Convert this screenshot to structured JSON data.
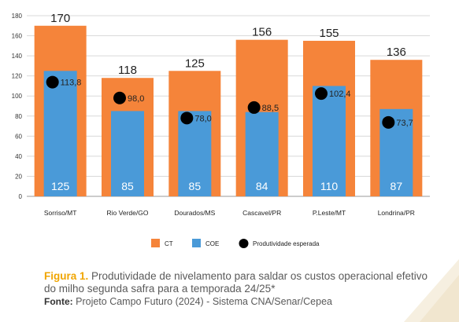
{
  "chart_data": {
    "type": "bar",
    "categories": [
      "Sorriso/MT",
      "Rio Verde/GO",
      "Dourados/MS",
      "Cascavel/PR",
      "P.Leste/MT",
      "Londrina/PR"
    ],
    "series": [
      {
        "name": "CT",
        "values": [
          170,
          118,
          125,
          156,
          155,
          136
        ],
        "color": "#f5843a",
        "labels": [
          "170",
          "118",
          "125",
          "156",
          "155",
          "136"
        ]
      },
      {
        "name": "COE",
        "values": [
          125,
          85,
          85,
          84,
          110,
          87
        ],
        "color": "#4a9ad8",
        "labels": [
          "125",
          "85",
          "85",
          "84",
          "110",
          "87"
        ]
      },
      {
        "name": "Produtividade esperada",
        "type": "scatter",
        "values": [
          113.8,
          98.0,
          78.0,
          88.5,
          102.4,
          73.7
        ],
        "color": "#000000",
        "labels": [
          "113,8",
          "98,0",
          "78,0",
          "88,5",
          "102,4",
          "73,7"
        ]
      }
    ],
    "yticks": [
      "0",
      "20",
      "40",
      "60",
      "80",
      "100",
      "120",
      "140",
      "160",
      "180"
    ],
    "ylim": [
      0,
      180
    ],
    "grid": true,
    "legend_position": "bottom"
  },
  "caption": {
    "figure_label": "Figura 1.",
    "figure_text": " Produtividade de nivelamento para saldar os custos operacional efetivo do milho segunda safra para a temporada 24/25*",
    "source_label": "Fonte:",
    "source_text": " Projeto Campo Futuro (2024) - Sistema CNA/Senar/Cepea"
  }
}
